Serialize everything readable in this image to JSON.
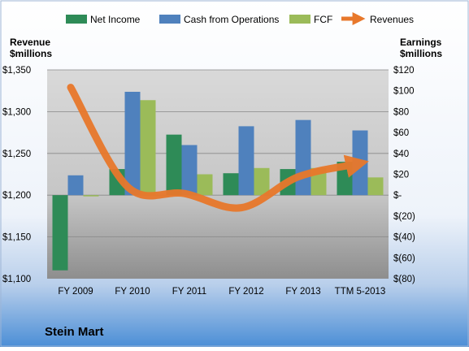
{
  "chart_data": {
    "type": "bar",
    "title": "Stein Mart",
    "categories": [
      "FY 2009",
      "FY 2010",
      "FY 2011",
      "FY 2012",
      "FY 2013",
      "TTM 5-2013"
    ],
    "left_axis": {
      "label_line1": "Revenue",
      "label_line2": "$millions",
      "ylim": [
        1100,
        1350
      ],
      "ticks": [
        "$1,100",
        "$1,150",
        "$1,200",
        "$1,250",
        "$1,300",
        "$1,350"
      ],
      "tick_values": [
        1100,
        1150,
        1200,
        1250,
        1300,
        1350
      ]
    },
    "right_axis": {
      "label_line1": "Earnings",
      "label_line2": "$millions",
      "ylim": [
        -80,
        120
      ],
      "ticks": [
        "$120",
        "$100",
        "$80",
        "$60",
        "$40",
        "$20",
        "$-",
        "$(20)",
        "$(40)",
        "$(60)",
        "$(80)"
      ],
      "tick_values": [
        120,
        100,
        80,
        60,
        40,
        20,
        0,
        -20,
        -40,
        -60,
        -80
      ]
    },
    "series": [
      {
        "name": "Net Income",
        "axis": "right",
        "type": "bar",
        "color": "#2E8B57",
        "values": [
          -72,
          25,
          58,
          21,
          25,
          32
        ]
      },
      {
        "name": "Cash from Operations",
        "axis": "right",
        "type": "bar",
        "color": "#4F81BD",
        "values": [
          19,
          99,
          48,
          66,
          72,
          62
        ]
      },
      {
        "name": "FCF",
        "axis": "right",
        "type": "bar",
        "color": "#9BBB59",
        "values": [
          0,
          91,
          20,
          26,
          26,
          17
        ]
      },
      {
        "name": "Revenues",
        "axis": "left",
        "type": "line",
        "color": "#E8782B",
        "values": [
          1329,
          1210,
          1202,
          1185,
          1222,
          1237
        ]
      }
    ],
    "grid": true,
    "legend_position": "top"
  }
}
